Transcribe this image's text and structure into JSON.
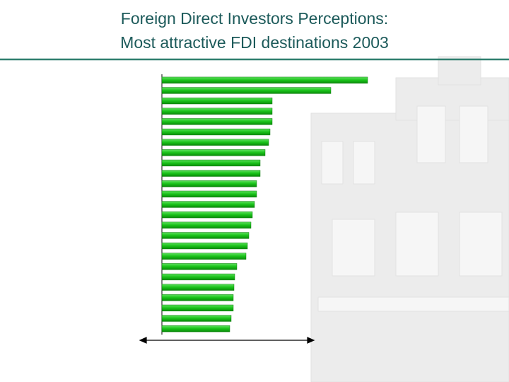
{
  "chart_data": {
    "type": "bar",
    "orientation": "horizontal",
    "title_lines": [
      "Foreign Direct Investors Perceptions:",
      "Most attractive FDI destinations 2003"
    ],
    "categories": [
      null,
      null,
      null,
      null,
      null,
      null,
      null,
      null,
      null,
      null,
      null,
      null,
      null,
      null,
      null,
      null,
      null,
      null,
      null,
      null,
      null,
      null,
      null,
      null,
      null
    ],
    "values": [
      291,
      239,
      156,
      156,
      156,
      153,
      151,
      146,
      139,
      139,
      134,
      134,
      131,
      128,
      126,
      123,
      121,
      119,
      106,
      103,
      102,
      101,
      101,
      98,
      96
    ],
    "color": "#19c219"
  }
}
